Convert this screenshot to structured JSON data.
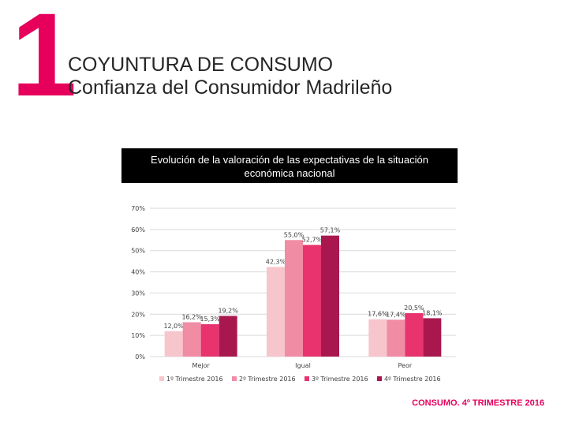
{
  "slide": {
    "number": "1",
    "title": "COYUNTURA DE CONSUMO",
    "subtitle": "Confianza del Consumidor Madrileño",
    "footer": "CONSUMO. 4º TRIMESTRE 2016"
  },
  "chart_data": {
    "type": "bar",
    "title_line1": "Evolución de la valoración de las expectativas de la situación",
    "title_line2": "económica nacional",
    "categories": [
      "Mejor",
      "Igual",
      "Peor"
    ],
    "ylim": [
      0,
      70
    ],
    "yticks": [
      "0%",
      "10%",
      "20%",
      "30%",
      "40%",
      "50%",
      "60%",
      "70%"
    ],
    "grid": true,
    "legend_position": "bottom",
    "series": [
      {
        "name": "1º Trimestre 2016",
        "color": "#f7c5cc",
        "values": [
          12.0,
          42.3,
          17.6
        ],
        "labels": [
          "12,0%",
          "42,3%",
          "17,6%"
        ]
      },
      {
        "name": "2º Trimestre 2016",
        "color": "#f08ca4",
        "values": [
          16.2,
          55.0,
          17.4
        ],
        "labels": [
          "16,2%",
          "55,0%",
          "17,4%"
        ]
      },
      {
        "name": "3º Trimestre 2016",
        "color": "#e8336e",
        "values": [
          15.3,
          52.7,
          20.5
        ],
        "labels": [
          "15,3%",
          "52,7%",
          "20,5%"
        ]
      },
      {
        "name": "4º Trimestre 2016",
        "color": "#a8184f",
        "values": [
          19.2,
          57.1,
          18.1
        ],
        "labels": [
          "19,2%",
          "57,1%",
          "18,1%"
        ]
      }
    ]
  }
}
